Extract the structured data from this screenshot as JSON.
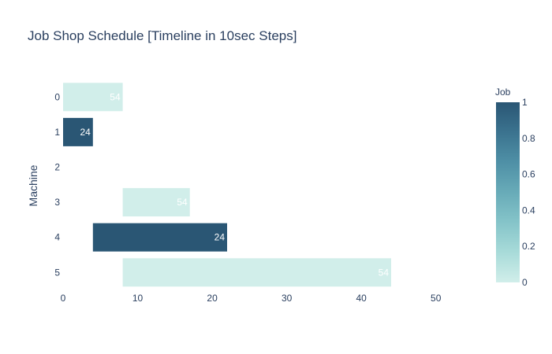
{
  "chart_data": {
    "type": "bar",
    "orientation": "horizontal",
    "title": "Job Shop Schedule [Timeline in 10sec Steps]",
    "xlabel": "",
    "ylabel": "Machine",
    "xlim": [
      0,
      55
    ],
    "x_ticks": [
      0,
      10,
      20,
      30,
      40,
      50
    ],
    "categories": [
      "0",
      "1",
      "2",
      "3",
      "4",
      "5"
    ],
    "bars": [
      {
        "machine": "0",
        "start": 0,
        "end": 8,
        "label": "54",
        "job": 0
      },
      {
        "machine": "1",
        "start": 0,
        "end": 4,
        "label": "24",
        "job": 1
      },
      {
        "machine": "3",
        "start": 8,
        "end": 17,
        "label": "54",
        "job": 0
      },
      {
        "machine": "4",
        "start": 4,
        "end": 22,
        "label": "24",
        "job": 1
      },
      {
        "machine": "5",
        "start": 8,
        "end": 44,
        "label": "54",
        "job": 0
      }
    ],
    "colorbar": {
      "title": "Job",
      "range": [
        0,
        1
      ],
      "ticks": [
        0,
        0.2,
        0.4,
        0.6,
        0.8,
        1
      ],
      "colors": [
        "#d1eeea",
        "#a8dbd9",
        "#85c4c9",
        "#68abb8",
        "#4f90a6",
        "#3b738f",
        "#2a5674"
      ]
    },
    "grid": false,
    "legend": "right"
  }
}
